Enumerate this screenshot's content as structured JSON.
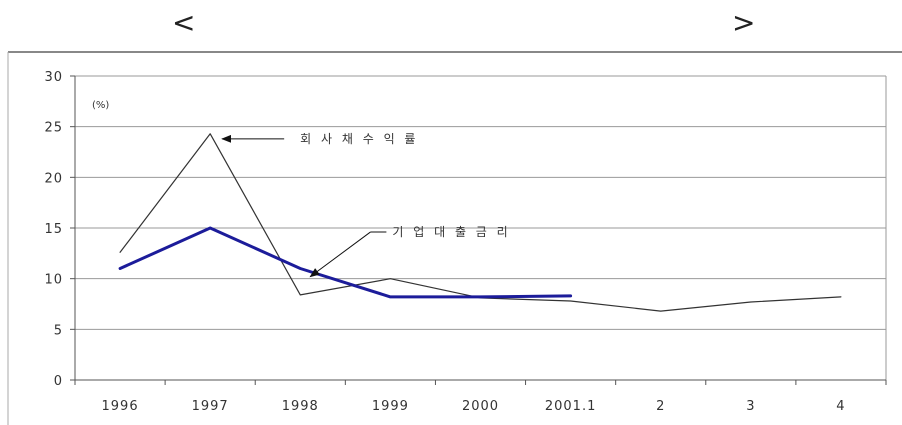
{
  "header": {
    "left_bracket": "<",
    "right_bracket": ">"
  },
  "chart_data": {
    "type": "line",
    "title": "",
    "unit_label": "(%)",
    "categories": [
      "1996",
      "1997",
      "1998",
      "1999",
      "2000",
      "2001.1",
      "2",
      "3",
      "4"
    ],
    "ylim": [
      0,
      30
    ],
    "yticks": [
      0,
      5,
      10,
      15,
      20,
      25,
      30
    ],
    "grid": true,
    "series": [
      {
        "name": "회사채수익률",
        "color": "#333333",
        "values": [
          12.6,
          24.3,
          8.4,
          10.0,
          8.1,
          7.8,
          6.8,
          7.7,
          8.2
        ]
      },
      {
        "name": "기업대출금리",
        "color": "#1c1c9a",
        "values": [
          11.0,
          15.0,
          11.0,
          8.2,
          8.2,
          8.3,
          null,
          null,
          null
        ]
      }
    ],
    "annotations": [
      {
        "series": 0,
        "text": "회 사 채 수 익 률"
      },
      {
        "series": 1,
        "text": "기 업 대 출 금 리"
      }
    ]
  }
}
